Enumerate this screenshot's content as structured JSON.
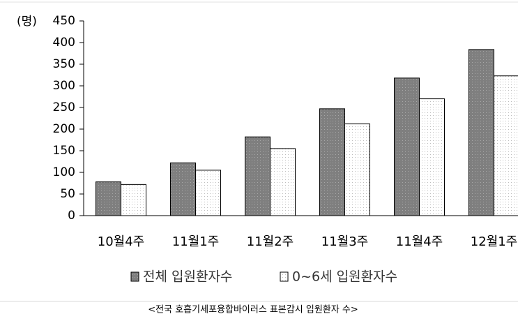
{
  "chart_data": {
    "type": "bar",
    "y_unit": "(명)",
    "categories": [
      "10월4주",
      "11월1주",
      "11월2주",
      "11월3주",
      "11월4주",
      "12월1주"
    ],
    "series": [
      {
        "name": "전체 입원환자수",
        "color": "#7f7f7f",
        "values": [
          78,
          122,
          182,
          247,
          318,
          384
        ]
      },
      {
        "name": "0~6세 입원환자수",
        "color": "#ffffff",
        "values": [
          72,
          105,
          155,
          212,
          270,
          323
        ]
      }
    ],
    "ylim": [
      0,
      450
    ],
    "yticks": [
      0,
      50,
      100,
      150,
      200,
      250,
      300,
      350,
      400,
      450
    ],
    "grid": false,
    "caption": "<전국 호흡기세포융합바이러스 표본감시 입원환자 수>"
  }
}
